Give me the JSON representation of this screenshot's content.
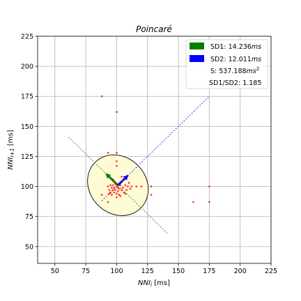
{
  "chart_data": {
    "type": "scatter",
    "title": "Poincaré",
    "xlabel_main": "NNI",
    "xlabel_sub": "i",
    "xlabel_unit": " [ms]",
    "ylabel_main": "NNI",
    "ylabel_sub": "i+1",
    "ylabel_unit": " [ms]",
    "xlim": [
      36,
      225
    ],
    "ylim": [
      36,
      225
    ],
    "xticks": [
      50,
      75,
      100,
      125,
      150,
      175,
      200,
      225
    ],
    "yticks": [
      50,
      75,
      100,
      125,
      150,
      175,
      200,
      225
    ],
    "grid": true,
    "legend_position": "top-right",
    "legend": [
      {
        "kind": "patch",
        "color": "#008000",
        "text": "SD1: 14.236",
        "unit": "ms",
        "sup": ""
      },
      {
        "kind": "patch",
        "color": "#0000ff",
        "text": "SD2: 12.011",
        "unit": "ms",
        "sup": ""
      },
      {
        "kind": "text",
        "text": "S: 537.188",
        "unit": "ms",
        "sup": "2"
      },
      {
        "kind": "text",
        "text": "SD1/SD2: 1.185",
        "unit": "",
        "sup": ""
      }
    ],
    "center": [
      101,
      101
    ],
    "sd1": 14.236,
    "sd2": 12.011,
    "sd1_line": {
      "x": [
        61,
        141
      ],
      "y": [
        141,
        61
      ],
      "color": "#008000"
    },
    "sd2_line": {
      "x": [
        88,
        175
      ],
      "y": [
        88,
        175
      ],
      "color": "#0000ff"
    },
    "ellipse_fill": "#fffbd5",
    "point_color": "#ff0000",
    "points": [
      [
        88,
        175
      ],
      [
        100,
        162
      ],
      [
        93,
        128
      ],
      [
        100,
        128
      ],
      [
        100,
        121
      ],
      [
        100,
        117
      ],
      [
        116,
        100
      ],
      [
        120,
        100
      ],
      [
        128,
        100
      ],
      [
        128,
        93
      ],
      [
        162,
        87
      ],
      [
        175,
        87
      ],
      [
        175,
        100
      ],
      [
        93,
        87
      ],
      [
        88,
        93
      ],
      [
        97,
        106
      ],
      [
        93,
        100
      ],
      [
        94,
        97
      ],
      [
        95,
        95
      ],
      [
        96,
        99
      ],
      [
        96,
        93
      ],
      [
        97,
        101
      ],
      [
        97,
        97
      ],
      [
        98,
        95
      ],
      [
        98,
        99
      ],
      [
        99,
        102
      ],
      [
        99,
        97
      ],
      [
        100,
        94
      ],
      [
        100,
        100
      ],
      [
        101,
        99
      ],
      [
        101,
        96
      ],
      [
        102,
        98
      ],
      [
        102,
        93
      ],
      [
        103,
        101
      ],
      [
        104,
        97
      ],
      [
        105,
        99
      ],
      [
        106,
        95
      ],
      [
        107,
        101
      ],
      [
        108,
        97
      ],
      [
        109,
        100
      ],
      [
        110,
        103
      ],
      [
        111,
        98
      ],
      [
        112,
        100
      ],
      [
        105,
        105
      ],
      [
        104,
        108
      ],
      [
        95,
        101
      ],
      [
        94,
        94
      ],
      [
        100,
        91
      ],
      [
        103,
        92
      ],
      [
        107,
        94
      ]
    ]
  }
}
